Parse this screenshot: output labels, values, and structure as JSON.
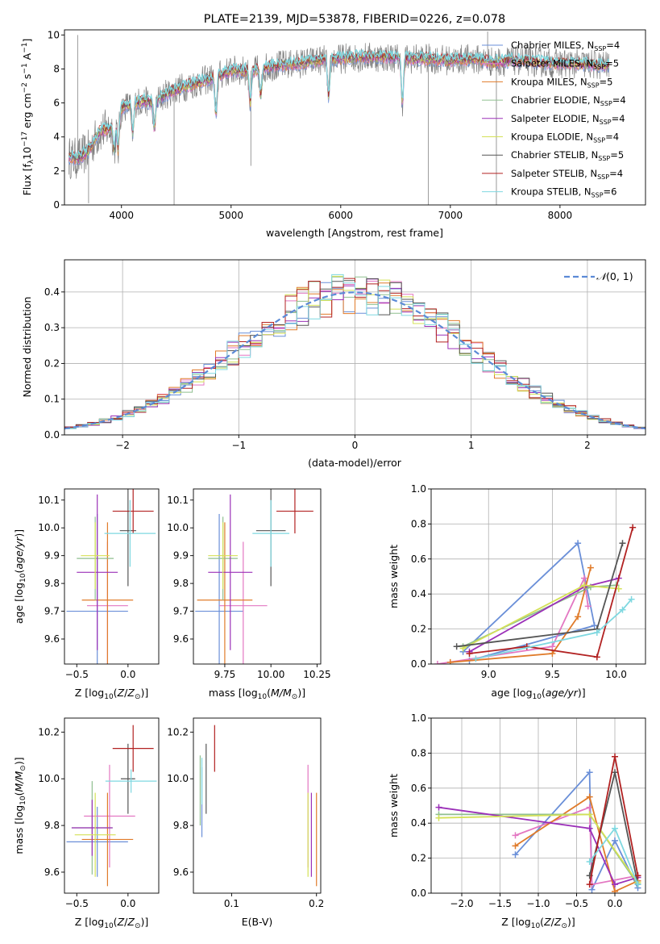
{
  "chart_data": [
    {
      "type": "line",
      "title": "PLATE=2139, MJD=53878, FIBERID=0226, z=0.078",
      "xlabel": "wavelength [Angstrom, rest frame]",
      "ylabel": "Flux [f_λ 10^-17 erg cm^-2 s^-1 A^-1]",
      "xlim": [
        3480,
        8780
      ],
      "ylim": [
        0,
        10.3
      ],
      "xticks": [
        4000,
        5000,
        6000,
        7000,
        8000
      ],
      "yticks": [
        0,
        2,
        4,
        6,
        8,
        10
      ],
      "legend": "upper right",
      "series": [
        {
          "name": "Chabrier MILES, N_SSP=4",
          "color": "#6a8fd8"
        },
        {
          "name": "Salpeter MILES, N_SSP=5",
          "color": "#e377c2"
        },
        {
          "name": "Kroupa MILES, N_SSP=5",
          "color": "#e07b2a"
        },
        {
          "name": "Chabrier ELODIE, N_SSP=4",
          "color": "#8fbf8f"
        },
        {
          "name": "Salpeter ELODIE, N_SSP=4",
          "color": "#9b30b8"
        },
        {
          "name": "Kroupa ELODIE, N_SSP=4",
          "color": "#d4e157"
        },
        {
          "name": "Chabrier STELIB, N_SSP=5",
          "color": "#555555"
        },
        {
          "name": "Salpeter STELIB, N_SSP=4",
          "color": "#b22222"
        },
        {
          "name": "Kroupa STELIB, N_SSP=6",
          "color": "#7fd8e0"
        }
      ],
      "data_color": "#808080",
      "continuum": [
        [
          3520,
          2.8
        ],
        [
          3600,
          2.7
        ],
        [
          3700,
          3.2
        ],
        [
          3800,
          4.3
        ],
        [
          3900,
          4.5
        ],
        [
          4000,
          5.7
        ],
        [
          4100,
          6.0
        ],
        [
          4200,
          6.1
        ],
        [
          4300,
          6.0
        ],
        [
          4400,
          6.5
        ],
        [
          4500,
          6.8
        ],
        [
          4600,
          7.0
        ],
        [
          4700,
          7.2
        ],
        [
          4800,
          7.4
        ],
        [
          5000,
          7.9
        ],
        [
          5200,
          7.9
        ],
        [
          5400,
          8.2
        ],
        [
          5600,
          8.3
        ],
        [
          5800,
          8.5
        ],
        [
          6000,
          8.6
        ],
        [
          6200,
          8.7
        ],
        [
          6400,
          8.7
        ],
        [
          6600,
          8.6
        ],
        [
          6800,
          8.6
        ],
        [
          7000,
          8.5
        ],
        [
          7200,
          8.6
        ],
        [
          7400,
          8.4
        ],
        [
          7600,
          8.5
        ],
        [
          7800,
          8.4
        ],
        [
          8000,
          8.3
        ],
        [
          8200,
          8.3
        ],
        [
          8400,
          8.2
        ]
      ]
    },
    {
      "type": "histogram",
      "xlabel": "(data-model)/error",
      "ylabel": "Normed distribution",
      "xlim": [
        -2.5,
        2.5
      ],
      "ylim": [
        0,
        0.49
      ],
      "xticks": [
        -2,
        -1,
        0,
        1,
        2
      ],
      "yticks": [
        0.0,
        0.1,
        0.2,
        0.3,
        0.4
      ],
      "grid": true,
      "bin_width": 0.1,
      "legend": {
        "label": "N(0,1)",
        "color": "#5b8ad6",
        "position": "upper right"
      }
    },
    {
      "type": "errorbar",
      "xlabel": "Z [log10(Z/Z_sun)]",
      "ylabel": "age  [log10(age/yr)]",
      "xlim": [
        -0.62,
        0.3
      ],
      "ylim": [
        9.51,
        10.14
      ],
      "xticks": [
        -0.5,
        0.0
      ],
      "yticks": [
        9.6,
        9.7,
        9.8,
        9.9,
        10.0,
        10.1
      ],
      "points": [
        {
          "color": "#6a8fd8",
          "x": -0.3,
          "y": 9.7,
          "xerr": 0.3,
          "yerr": 0.35
        },
        {
          "color": "#e377c2",
          "x": -0.2,
          "y": 9.72,
          "xerr": 0.2,
          "yerr": 0.23
        },
        {
          "color": "#e07b2a",
          "x": -0.2,
          "y": 9.74,
          "xerr": 0.25,
          "yerr": 0.28
        },
        {
          "color": "#8fbf8f",
          "x": -0.32,
          "y": 9.89,
          "xerr": 0.18,
          "yerr": 0.15
        },
        {
          "color": "#9b30b8",
          "x": -0.3,
          "y": 9.84,
          "xerr": 0.2,
          "yerr": 0.28
        },
        {
          "color": "#d4e157",
          "x": -0.32,
          "y": 9.9,
          "xerr": 0.14,
          "yerr": 0.12
        },
        {
          "color": "#555555",
          "x": 0.0,
          "y": 9.99,
          "xerr": 0.08,
          "yerr": 0.2
        },
        {
          "color": "#b22222",
          "x": 0.05,
          "y": 10.06,
          "xerr": 0.2,
          "yerr": 0.08
        },
        {
          "color": "#7fd8e0",
          "x": 0.02,
          "y": 9.98,
          "xerr": 0.25,
          "yerr": 0.12
        }
      ]
    },
    {
      "type": "errorbar",
      "xlabel": "mass [log10(M/M_sun)]",
      "xlim": [
        9.58,
        10.27
      ],
      "ylim": [
        9.51,
        10.14
      ],
      "xticks": [
        9.75,
        10.0,
        10.25
      ],
      "xtick_labels": [
        "9.75",
        "10.00",
        "10.25"
      ],
      "yticks": [
        9.6,
        9.7,
        9.8,
        9.9,
        10.0,
        10.1
      ],
      "points": [
        {
          "color": "#6a8fd8",
          "x": 9.72,
          "y": 9.7,
          "xerr": 0.13,
          "yerr": 0.35
        },
        {
          "color": "#e377c2",
          "x": 9.85,
          "y": 9.72,
          "xerr": 0.13,
          "yerr": 0.23
        },
        {
          "color": "#e07b2a",
          "x": 9.75,
          "y": 9.74,
          "xerr": 0.15,
          "yerr": 0.28
        },
        {
          "color": "#8fbf8f",
          "x": 9.74,
          "y": 9.89,
          "xerr": 0.08,
          "yerr": 0.15
        },
        {
          "color": "#9b30b8",
          "x": 9.78,
          "y": 9.84,
          "xerr": 0.12,
          "yerr": 0.28
        },
        {
          "color": "#d4e157",
          "x": 9.74,
          "y": 9.9,
          "xerr": 0.08,
          "yerr": 0.12
        },
        {
          "color": "#555555",
          "x": 10.0,
          "y": 9.99,
          "xerr": 0.08,
          "yerr": 0.2
        },
        {
          "color": "#b22222",
          "x": 10.13,
          "y": 10.06,
          "xerr": 0.1,
          "yerr": 0.08
        },
        {
          "color": "#7fd8e0",
          "x": 10.0,
          "y": 9.98,
          "xerr": 0.1,
          "yerr": 0.12
        }
      ]
    },
    {
      "type": "line",
      "xlabel": "age  [log10(age/yr)]",
      "ylabel": "mass weight",
      "xlim": [
        8.55,
        10.23
      ],
      "ylim": [
        0,
        1.0
      ],
      "xticks": [
        9.0,
        9.5,
        10.0
      ],
      "yticks": [
        0.0,
        0.2,
        0.4,
        0.6,
        0.8,
        1.0
      ],
      "grid": true,
      "series": [
        {
          "color": "#6a8fd8",
          "x": [
            8.8,
            9.7,
            9.83,
            8.85
          ],
          "y": [
            0.07,
            0.69,
            0.22,
            0.02
          ]
        },
        {
          "color": "#e377c2",
          "x": [
            8.6,
            9.5,
            9.75,
            9.78
          ],
          "y": [
            0.0,
            0.1,
            0.49,
            0.33
          ]
        },
        {
          "color": "#e07b2a",
          "x": [
            8.7,
            9.5,
            9.7,
            9.8
          ],
          "y": [
            0.01,
            0.06,
            0.27,
            0.55
          ]
        },
        {
          "color": "#8fbf8f",
          "x": [
            8.8,
            9.8,
            10.0
          ],
          "y": [
            0.1,
            0.44,
            0.45
          ]
        },
        {
          "color": "#9b30b8",
          "x": [
            8.85,
            9.75,
            10.02
          ],
          "y": [
            0.07,
            0.44,
            0.49
          ]
        },
        {
          "color": "#d4e157",
          "x": [
            8.8,
            9.75,
            10.02
          ],
          "y": [
            0.09,
            0.45,
            0.43
          ]
        },
        {
          "color": "#555555",
          "x": [
            8.75,
            9.85,
            10.05
          ],
          "y": [
            0.1,
            0.2,
            0.69
          ]
        },
        {
          "color": "#b22222",
          "x": [
            8.85,
            9.3,
            9.85,
            10.13
          ],
          "y": [
            0.06,
            0.1,
            0.04,
            0.78
          ]
        },
        {
          "color": "#7fd8e0",
          "x": [
            8.9,
            9.85,
            10.05,
            10.12
          ],
          "y": [
            0.03,
            0.18,
            0.31,
            0.37
          ]
        }
      ]
    },
    {
      "type": "errorbar",
      "xlabel": "Z [log10(Z/Z_sun)]",
      "ylabel": "mass [log10(M/M_sun)]",
      "xlim": [
        -0.62,
        0.3
      ],
      "ylim": [
        9.51,
        10.26
      ],
      "xticks": [
        -0.5,
        0.0
      ],
      "yticks": [
        9.6,
        9.8,
        10.0,
        10.2
      ],
      "points": [
        {
          "color": "#6a8fd8",
          "x": -0.3,
          "y": 9.73,
          "xerr": 0.3,
          "yerr": 0.15
        },
        {
          "color": "#e377c2",
          "x": -0.18,
          "y": 9.84,
          "xerr": 0.25,
          "yerr": 0.22
        },
        {
          "color": "#e07b2a",
          "x": -0.2,
          "y": 9.74,
          "xerr": 0.25,
          "yerr": 0.2
        },
        {
          "color": "#8fbf8f",
          "x": -0.35,
          "y": 9.79,
          "xerr": 0.2,
          "yerr": 0.2
        },
        {
          "color": "#9b30b8",
          "x": -0.35,
          "y": 9.79,
          "xerr": 0.2,
          "yerr": 0.12
        },
        {
          "color": "#d4e157",
          "x": -0.32,
          "y": 9.76,
          "xerr": 0.2,
          "yerr": 0.18
        },
        {
          "color": "#555555",
          "x": 0.0,
          "y": 10.0,
          "xerr": 0.07,
          "yerr": 0.15
        },
        {
          "color": "#b22222",
          "x": 0.05,
          "y": 10.13,
          "xerr": 0.2,
          "yerr": 0.1
        },
        {
          "color": "#7fd8e0",
          "x": 0.03,
          "y": 9.99,
          "xerr": 0.25,
          "yerr": 0.05
        }
      ]
    },
    {
      "type": "errorbar",
      "xlabel": "E(B-V)",
      "xlim": [
        0.055,
        0.205
      ],
      "ylim": [
        9.51,
        10.26
      ],
      "xticks": [
        0.1,
        0.2
      ],
      "yticks": [
        9.6,
        9.8,
        10.0,
        10.2
      ],
      "points": [
        {
          "color": "#6a8fd8",
          "x": 0.065,
          "y": 9.9,
          "yerr": 0.15
        },
        {
          "color": "#e377c2",
          "x": 0.19,
          "y": 9.84,
          "yerr": 0.22
        },
        {
          "color": "#e07b2a",
          "x": 0.2,
          "y": 9.74,
          "yerr": 0.2
        },
        {
          "color": "#8fbf8f",
          "x": 0.063,
          "y": 9.95,
          "yerr": 0.15
        },
        {
          "color": "#9b30b8",
          "x": 0.194,
          "y": 9.76,
          "yerr": 0.18
        },
        {
          "color": "#d4e157",
          "x": 0.19,
          "y": 9.76,
          "yerr": 0.18
        },
        {
          "color": "#555555",
          "x": 0.07,
          "y": 10.0,
          "yerr": 0.15
        },
        {
          "color": "#b22222",
          "x": 0.08,
          "y": 10.13,
          "yerr": 0.1
        },
        {
          "color": "#7fd8e0",
          "x": 0.065,
          "y": 9.99,
          "yerr": 0.1
        }
      ]
    },
    {
      "type": "line",
      "xlabel": "Z [log10(Z/Z_sun)]",
      "ylabel": "mass weight",
      "xlim": [
        -2.4,
        0.4
      ],
      "ylim": [
        0,
        1.0
      ],
      "xticks": [
        -2.0,
        -1.5,
        -1.0,
        -0.5,
        0.0
      ],
      "yticks": [
        0.0,
        0.2,
        0.4,
        0.6,
        0.8,
        1.0
      ],
      "grid": true,
      "series": [
        {
          "color": "#6a8fd8",
          "x": [
            -1.3,
            -0.33,
            -0.3,
            0.0,
            0.3
          ],
          "y": [
            0.22,
            0.69,
            0.02,
            0.3,
            0.03
          ]
        },
        {
          "color": "#e377c2",
          "x": [
            -1.3,
            -0.33,
            -0.3,
            0.3
          ],
          "y": [
            0.33,
            0.49,
            0.05,
            0.1
          ]
        },
        {
          "color": "#e07b2a",
          "x": [
            -1.3,
            -0.33,
            0.0,
            0.3
          ],
          "y": [
            0.27,
            0.55,
            0.01,
            0.07
          ]
        },
        {
          "color": "#8fbf8f",
          "x": [
            -2.3,
            -0.33,
            0.3
          ],
          "y": [
            0.45,
            0.45,
            0.05
          ]
        },
        {
          "color": "#9b30b8",
          "x": [
            -2.3,
            -0.33,
            0.0,
            0.3
          ],
          "y": [
            0.49,
            0.37,
            0.05,
            0.09
          ]
        },
        {
          "color": "#d4e157",
          "x": [
            -2.3,
            -0.33,
            0.3
          ],
          "y": [
            0.43,
            0.45,
            0.06
          ]
        },
        {
          "color": "#555555",
          "x": [
            -0.33,
            0.0,
            0.3
          ],
          "y": [
            0.1,
            0.69,
            0.05
          ]
        },
        {
          "color": "#b22222",
          "x": [
            -0.33,
            0.0,
            0.3
          ],
          "y": [
            0.05,
            0.78,
            0.1
          ]
        },
        {
          "color": "#7fd8e0",
          "x": [
            -0.33,
            0.0,
            0.3
          ],
          "y": [
            0.18,
            0.37,
            0.05
          ]
        }
      ]
    }
  ]
}
